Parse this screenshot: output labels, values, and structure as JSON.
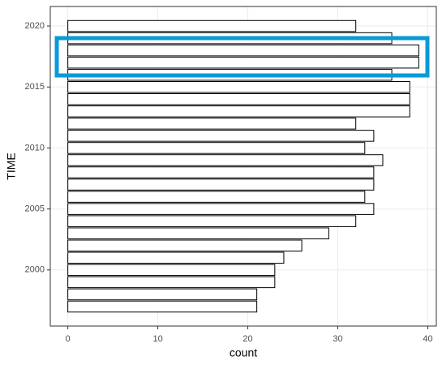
{
  "chart_data": {
    "type": "bar",
    "orientation": "horizontal",
    "x": [
      1997,
      1998,
      1999,
      2000,
      2001,
      2002,
      2003,
      2004,
      2005,
      2006,
      2007,
      2008,
      2009,
      2010,
      2011,
      2012,
      2013,
      2014,
      2015,
      2016,
      2017,
      2018,
      2019,
      2020
    ],
    "values": [
      21,
      21,
      23,
      23,
      24,
      26,
      29,
      32,
      34,
      33,
      34,
      34,
      35,
      33,
      34,
      32,
      38,
      38,
      38,
      36,
      39,
      39,
      36,
      32
    ],
    "x_label": "TIME",
    "y_label": "count",
    "xlim": [
      1995.4,
      2021.6
    ],
    "xticks": [
      2000,
      2005,
      2010,
      2015,
      2020
    ],
    "ylim": [
      -1.95,
      40.95
    ],
    "yticks": [
      0,
      10,
      20,
      30,
      40
    ],
    "color": "#ffffff",
    "edge_color": "#000000",
    "grid": true
  }
}
